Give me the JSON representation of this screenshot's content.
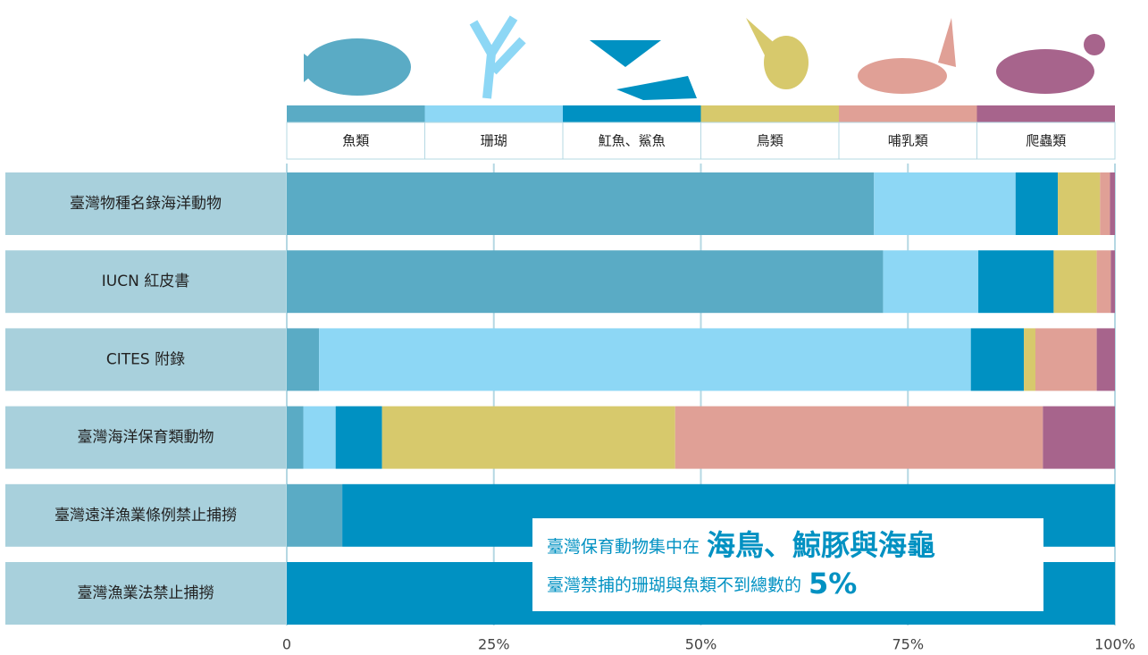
{
  "chart_data": {
    "type": "bar",
    "orientation": "horizontal",
    "stacked": true,
    "categories": [
      "臺灣物種名錄海洋動物",
      "IUCN 紅皮書",
      "CITES 附錄",
      "臺灣海洋保育類動物",
      "臺灣遠洋漁業條例禁止捕撈",
      "臺灣漁業法禁止捕撈"
    ],
    "series": [
      {
        "name": "魚類",
        "color": "#5aabc5",
        "values": [
          70.9,
          72.0,
          3.9,
          2.0,
          6.7,
          0
        ]
      },
      {
        "name": "珊瑚",
        "color": "#8dd7f5",
        "values": [
          17.1,
          11.5,
          78.7,
          3.9,
          0,
          0
        ]
      },
      {
        "name": "魟魚、鯊魚",
        "color": "#0091c2",
        "values": [
          5.1,
          9.1,
          6.4,
          5.6,
          93.3,
          100
        ]
      },
      {
        "name": "鳥類",
        "color": "#d7c96c",
        "values": [
          5.1,
          5.2,
          1.4,
          35.4,
          0,
          0
        ]
      },
      {
        "name": "哺乳類",
        "color": "#e0a096",
        "values": [
          1.2,
          1.7,
          7.4,
          44.4,
          0,
          0
        ]
      },
      {
        "name": "爬蟲類",
        "color": "#a7648c",
        "values": [
          0.6,
          0.5,
          2.2,
          8.7,
          0,
          0
        ]
      }
    ],
    "xlim": [
      0,
      100
    ],
    "xticks": [
      0,
      {
        "value": 25,
        "label": "25%"
      },
      {
        "value": 50,
        "label": "50%"
      },
      {
        "value": 75,
        "label": "75%"
      },
      {
        "value": 100,
        "label": "100%"
      }
    ],
    "grid": true,
    "annotations": [
      {
        "text": "臺灣保育動物集中在",
        "highlight": "海鳥、鯨豚與海龜"
      },
      {
        "text": "臺灣禁捕的珊瑚與魚類不到總數的",
        "highlight": "5%"
      }
    ]
  }
}
